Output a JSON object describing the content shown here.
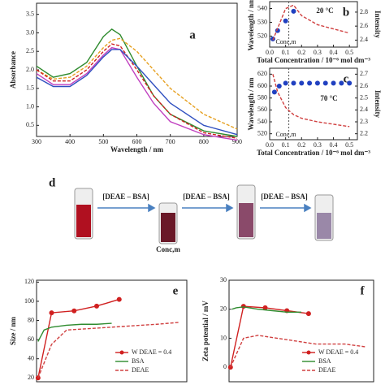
{
  "chart_data": [
    {
      "type": "line",
      "panel_label": "a",
      "xlabel": "Wavelength / nm",
      "ylabel": "Absorbance",
      "xlim": [
        300,
        900
      ],
      "xticks": [
        300,
        400,
        500,
        600,
        700,
        800,
        900
      ],
      "ylim": [
        0.2,
        3.8
      ],
      "yticks": [
        0.5,
        {
          "value": 1,
          "label": "1.0"
        },
        1.5,
        {
          "value": 2,
          "label": "2.0"
        },
        2.5,
        {
          "value": 3,
          "label": "3.0"
        },
        3.5
      ],
      "x": [
        300,
        350,
        400,
        450,
        500,
        525,
        550,
        600,
        650,
        700,
        800,
        900
      ],
      "series": [
        {
          "color": "#2e8b2e",
          "dash": false,
          "values": [
            2.1,
            1.8,
            1.9,
            2.2,
            2.9,
            3.1,
            2.95,
            2.1,
            1.3,
            0.8,
            0.35,
            0.2
          ]
        },
        {
          "color": "#e6a020",
          "dash": true,
          "values": [
            2.0,
            1.75,
            1.8,
            2.1,
            2.6,
            2.8,
            2.85,
            2.5,
            2.0,
            1.5,
            0.8,
            0.4
          ]
        },
        {
          "color": "#d02020",
          "dash": true,
          "values": [
            2.0,
            1.7,
            1.7,
            2.0,
            2.5,
            2.7,
            2.65,
            2.0,
            1.3,
            0.8,
            0.3,
            0.15
          ]
        },
        {
          "color": "#c040c0",
          "dash": false,
          "values": [
            1.9,
            1.6,
            1.6,
            1.9,
            2.4,
            2.6,
            2.55,
            1.8,
            1.1,
            0.6,
            0.25,
            0.1
          ]
        },
        {
          "color": "#3050c0",
          "dash": false,
          "values": [
            1.8,
            1.55,
            1.55,
            1.85,
            2.35,
            2.55,
            2.55,
            2.1,
            1.6,
            1.1,
            0.5,
            0.25
          ]
        }
      ]
    },
    {
      "type": "line",
      "panel_label": "b",
      "xlabel": "Total Concentration / 10⁻⁶ mol dm⁻³",
      "ylabel": "Wavelength / nm",
      "y2label": "Intensity",
      "annotations": [
        "20 °C",
        "Conc,m"
      ],
      "vline": 0.12,
      "xlim": [
        0,
        0.55
      ],
      "xticks": [
        {
          "value": 0,
          "label": "0.0"
        },
        0.1,
        0.2,
        0.3,
        0.4,
        0.5
      ],
      "ylim": [
        512,
        545
      ],
      "yticks": [
        520,
        530,
        540
      ],
      "y2lim": [
        2.3,
        2.95
      ],
      "y2ticks": [
        2.4,
        2.6,
        2.8
      ],
      "series": [
        {
          "color": "#2040c0",
          "dash": false,
          "marker": true,
          "line": false,
          "x": [
            0.02,
            0.05,
            0.1,
            0.15
          ],
          "values": [
            518,
            524,
            531,
            538
          ]
        },
        {
          "color": "#d04040",
          "dash": true,
          "axis": "y2",
          "x": [
            0.02,
            0.1,
            0.15,
            0.2,
            0.3,
            0.4,
            0.5
          ],
          "values": [
            2.4,
            2.85,
            2.9,
            2.75,
            2.62,
            2.56,
            2.5
          ]
        }
      ]
    },
    {
      "type": "line",
      "panel_label": "c",
      "xlabel": "Total Concentration / 10⁻⁶ mol dm⁻³",
      "ylabel": "Wavelength / nm",
      "y2label": "Intensity",
      "annotations": [
        "70 °C",
        "Conc,m"
      ],
      "vline": 0.12,
      "xlim": [
        0,
        0.55
      ],
      "xticks": [
        {
          "value": 0,
          "label": "0.0"
        },
        0.1,
        0.2,
        0.3,
        0.4,
        0.5
      ],
      "ylim": [
        510,
        630
      ],
      "yticks": [
        520,
        540,
        560,
        580,
        600,
        620
      ],
      "y2lim": [
        2.15,
        2.75
      ],
      "y2ticks": [
        2.2,
        2.3,
        2.4,
        2.5,
        2.6,
        2.7
      ],
      "series": [
        {
          "color": "#2040c0",
          "dash": false,
          "marker": true,
          "line": false,
          "x": [
            0.03,
            0.06,
            0.1,
            0.15,
            0.2,
            0.25,
            0.3,
            0.35,
            0.4,
            0.45,
            0.5
          ],
          "values": [
            590,
            600,
            605,
            605,
            605,
            605,
            605,
            605,
            605,
            605,
            605
          ]
        },
        {
          "color": "#d04040",
          "dash": true,
          "axis": "y2",
          "x": [
            0.02,
            0.05,
            0.1,
            0.15,
            0.2,
            0.3,
            0.4,
            0.5
          ],
          "values": [
            2.7,
            2.55,
            2.42,
            2.36,
            2.33,
            2.3,
            2.28,
            2.26
          ]
        }
      ]
    },
    {
      "type": "line",
      "panel_label": "e",
      "ylabel": "Size / nm",
      "legend": "lower right",
      "xlim": [
        0,
        10
      ],
      "ylim": [
        16,
        122
      ],
      "yticks": [
        20,
        40,
        60,
        80,
        100,
        120
      ],
      "series": [
        {
          "name": "W DEAE = 0.4",
          "color": "#d02020",
          "dash": false,
          "marker": true,
          "x": [
            0.1,
            1,
            2.5,
            4,
            5.5
          ],
          "values": [
            20,
            88,
            90,
            95,
            102
          ]
        },
        {
          "name": "BSA",
          "color": "#2e8b2e",
          "dash": false,
          "marker": false,
          "x": [
            0.1,
            0.5,
            1,
            2,
            3,
            4,
            5
          ],
          "values": [
            58,
            70,
            73,
            75,
            76,
            76,
            77
          ]
        },
        {
          "name": "DEAE",
          "color": "#d04040",
          "dash": true,
          "marker": false,
          "x": [
            0.1,
            1,
            2,
            4,
            6,
            8,
            9.5
          ],
          "values": [
            20,
            55,
            70,
            72,
            74,
            76,
            78
          ]
        }
      ]
    },
    {
      "type": "line",
      "panel_label": "f",
      "ylabel": "Zeta potential / mV",
      "legend": "lower right",
      "xlim": [
        0,
        10
      ],
      "ylim": [
        -5,
        30
      ],
      "yticks": [
        0,
        10,
        20,
        30
      ],
      "series": [
        {
          "name": "W DEAE = 0.4",
          "color": "#d02020",
          "dash": false,
          "marker": true,
          "x": [
            0.1,
            1,
            2.5,
            4,
            5.5
          ],
          "values": [
            0,
            21,
            20.5,
            19.5,
            18.5
          ]
        },
        {
          "name": "BSA",
          "color": "#2e8b2e",
          "dash": false,
          "marker": false,
          "x": [
            0.2,
            0.5,
            1,
            2,
            3,
            4,
            5
          ],
          "values": [
            20,
            20.5,
            20.8,
            20,
            19.5,
            19,
            19
          ]
        },
        {
          "name": "DEAE",
          "color": "#d04040",
          "dash": true,
          "marker": false,
          "x": [
            0.1,
            1,
            2,
            4,
            6,
            8,
            9.5
          ],
          "values": [
            0,
            10,
            11,
            9.5,
            8,
            8,
            7
          ]
        }
      ]
    }
  ],
  "scheme": {
    "panel_label": "d",
    "steps": [
      "[DEAE – BSA]",
      "[DEAE – BSA]",
      "[DEAE – BSA]"
    ],
    "note": "Conc,m"
  }
}
